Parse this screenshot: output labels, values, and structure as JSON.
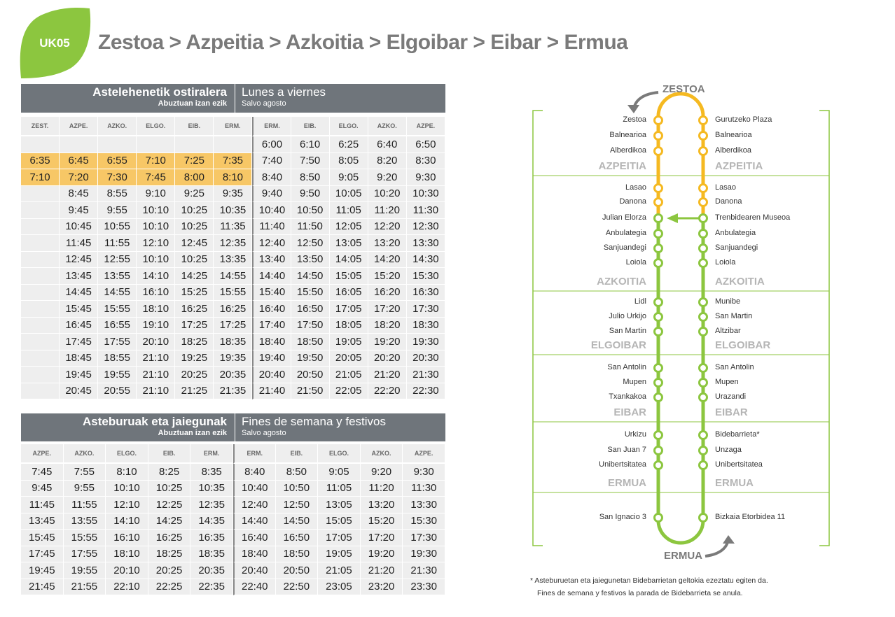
{
  "header": {
    "route_code": "UK05",
    "route_title": "Zestoa > Azpeitia > Azkoitia > Elgoibar > Eibar > Ermua"
  },
  "weekday": {
    "title_eu": "Astelehenetik ostiralera",
    "subtitle_eu": "Abuztuan izan ezik",
    "title_es": "Lunes a viernes",
    "subtitle_es": "Salvo agosto",
    "columns": [
      "ZEST.",
      "AZPE.",
      "AZKO.",
      "ELGO.",
      "EIB.",
      "ERM.",
      "ERM.",
      "EIB.",
      "ELGO.",
      "AZKO.",
      "AZPE."
    ],
    "rows": [
      [
        "",
        "",
        "",
        "",
        "",
        "",
        "6:00",
        "6:10",
        "6:25",
        "6:40",
        "6:50"
      ],
      [
        "6:35",
        "6:45",
        "6:55",
        "7:10",
        "7:25",
        "7:35",
        "7:40",
        "7:50",
        "8:05",
        "8:20",
        "8:30"
      ],
      [
        "7:10",
        "7:20",
        "7:30",
        "7:45",
        "8:00",
        "8:10",
        "8:40",
        "8:50",
        "9:05",
        "9:20",
        "9:30"
      ],
      [
        "",
        "8:45",
        "8:55",
        "9:10",
        "9:25",
        "9:35",
        "9:40",
        "9:50",
        "10:05",
        "10:20",
        "10:30"
      ],
      [
        "",
        "9:45",
        "9:55",
        "10:10",
        "10:25",
        "10:35",
        "10:40",
        "10:50",
        "11:05",
        "11:20",
        "11:30"
      ],
      [
        "",
        "10:45",
        "10:55",
        "10:10",
        "10:25",
        "11:35",
        "11:40",
        "11:50",
        "12:05",
        "12:20",
        "12:30"
      ],
      [
        "",
        "11:45",
        "11:55",
        "12:10",
        "12:45",
        "12:35",
        "12:40",
        "12:50",
        "13:05",
        "13:20",
        "13:30"
      ],
      [
        "",
        "12:45",
        "12:55",
        "10:10",
        "10:25",
        "13:35",
        "13:40",
        "13:50",
        "14:05",
        "14:20",
        "14:30"
      ],
      [
        "",
        "13:45",
        "13:55",
        "14:10",
        "14:25",
        "14:55",
        "14:40",
        "14:50",
        "15:05",
        "15:20",
        "15:30"
      ],
      [
        "",
        "14:45",
        "14:55",
        "16:10",
        "15:25",
        "15:55",
        "15:40",
        "15:50",
        "16:05",
        "16:20",
        "16:30"
      ],
      [
        "",
        "15:45",
        "15:55",
        "18:10",
        "16:25",
        "16:25",
        "16:40",
        "16:50",
        "17:05",
        "17:20",
        "17:30"
      ],
      [
        "",
        "16:45",
        "16:55",
        "19:10",
        "17:25",
        "17:25",
        "17:40",
        "17:50",
        "18:05",
        "18:20",
        "18:30"
      ],
      [
        "",
        "17:45",
        "17:55",
        "20:10",
        "18:25",
        "18:35",
        "18:40",
        "18:50",
        "19:05",
        "19:20",
        "19:30"
      ],
      [
        "",
        "18:45",
        "18:55",
        "21:10",
        "19:25",
        "19:35",
        "19:40",
        "19:50",
        "20:05",
        "20:20",
        "20:30"
      ],
      [
        "",
        "19:45",
        "19:55",
        "21:10",
        "20:25",
        "20:35",
        "20:40",
        "20:50",
        "21:05",
        "21:20",
        "21:30"
      ],
      [
        "",
        "20:45",
        "20:55",
        "21:10",
        "21:25",
        "21:35",
        "21:40",
        "21:50",
        "22:05",
        "22:20",
        "22:30"
      ]
    ]
  },
  "weekend": {
    "title_eu": "Asteburuak eta jaiegunak",
    "subtitle_eu": "Abuztuan izan ezik",
    "title_es": "Fines de semana y festivos",
    "subtitle_es": "Salvo agosto",
    "columns": [
      "AZPE.",
      "AZKO.",
      "ELGO.",
      "EIB.",
      "ERM.",
      "ERM.",
      "EIB.",
      "ELGO.",
      "AZKO.",
      "AZPE."
    ],
    "rows": [
      [
        "7:45",
        "7:55",
        "8:10",
        "8:25",
        "8:35",
        "8:40",
        "8:50",
        "9:05",
        "9:20",
        "9:30"
      ],
      [
        "9:45",
        "9:55",
        "10:10",
        "10:25",
        "10:35",
        "10:40",
        "10:50",
        "11:05",
        "11:20",
        "11:30"
      ],
      [
        "11:45",
        "11:55",
        "12:10",
        "12:25",
        "12:35",
        "12:40",
        "12:50",
        "13:05",
        "13:20",
        "13:30"
      ],
      [
        "13:45",
        "13:55",
        "14:10",
        "14:25",
        "14:35",
        "14:40",
        "14:50",
        "15:05",
        "15:20",
        "15:30"
      ],
      [
        "15:45",
        "15:55",
        "16:10",
        "16:25",
        "16:35",
        "16:40",
        "16:50",
        "17:05",
        "17:20",
        "17:30"
      ],
      [
        "17:45",
        "17:55",
        "18:10",
        "18:25",
        "18:35",
        "18:40",
        "18:50",
        "19:05",
        "19:20",
        "19:30"
      ],
      [
        "19:45",
        "19:55",
        "20:10",
        "20:25",
        "20:35",
        "20:40",
        "20:50",
        "21:05",
        "21:20",
        "21:30"
      ],
      [
        "21:45",
        "21:55",
        "22:10",
        "22:25",
        "22:35",
        "22:40",
        "22:50",
        "23:05",
        "23:20",
        "23:30"
      ]
    ]
  },
  "map": {
    "start": "ZESTOA",
    "end": "ERMUA",
    "left_stops": [
      "Zestoa",
      "Balnearioa",
      "Alberdikoa",
      "Lasao",
      "Danona",
      "Julian Elorza",
      "Anbulategia",
      "Sanjuandegi",
      "Loiola",
      "Lidl",
      "Julio Urkijo",
      "San Martin",
      "San Antolin",
      "Mupen",
      "Txankakoa",
      "Urkizu",
      "San Juan 7",
      "Unibertsitatea",
      "San Ignacio 3"
    ],
    "right_stops": [
      "Gurutzeko Plaza",
      "Balnearioa",
      "Alberdikoa",
      "Lasao",
      "Danona",
      "Trenbidearen Museoa",
      "Anbulategia",
      "Sanjuandegi",
      "Loiola",
      "Munibe",
      "San Martin",
      "Altzibar",
      "San Antolin",
      "Mupen",
      "Urazandi",
      "Bidebarrieta*",
      "Unzaga",
      "Unibertsitatea",
      "Bizkaia Etorbidea 11"
    ],
    "towns": [
      "AZPEITIA",
      "AZKOITIA",
      "ELGOIBAR",
      "EIBAR",
      "ERMUA"
    ],
    "colors": {
      "orange": "#f5b921",
      "green": "#8cc63f",
      "grey_town": "#b5b5b5"
    }
  },
  "footnote": {
    "line1": "* Asteburuetan eta jaiegunetan Bidebarrietan geltokia ezeztatu egiten da.",
    "line2": "Fines de semana y festivos la parada de Bidebarrieta se anula."
  }
}
